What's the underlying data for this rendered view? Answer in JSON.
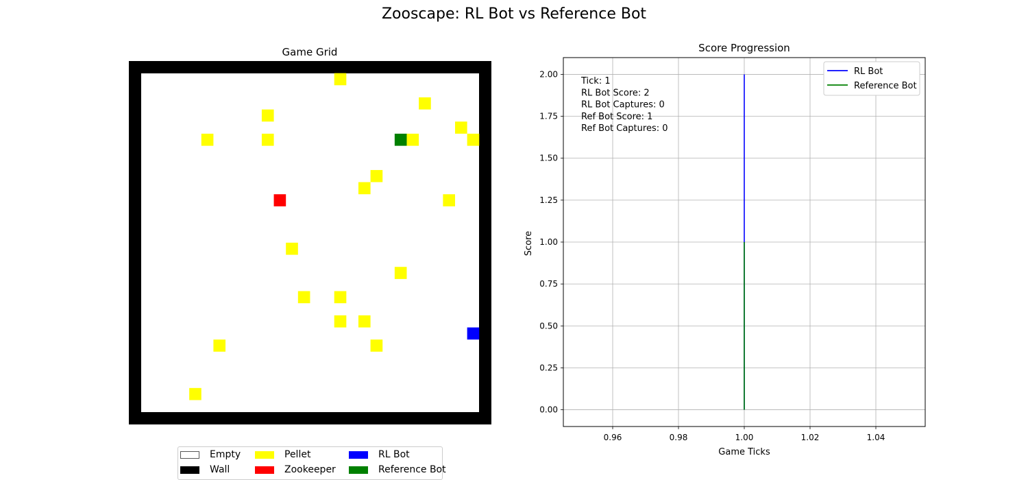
{
  "figure_title": "Zooscape: RL Bot vs Reference Bot",
  "grid_panel": {
    "title": "Game Grid",
    "cols": 30,
    "rows": 30,
    "colors": {
      "empty": "#ffffff",
      "wall": "#000000",
      "pellet": "#ffff00",
      "zookeeper": "#ff0000",
      "rl_bot": "#0000ff",
      "reference_bot": "#008000"
    },
    "pellets": [
      [
        17,
        1
      ],
      [
        24,
        3
      ],
      [
        11,
        4
      ],
      [
        27,
        5
      ],
      [
        6,
        6
      ],
      [
        11,
        6
      ],
      [
        23,
        6
      ],
      [
        28,
        6
      ],
      [
        20,
        9
      ],
      [
        19,
        10
      ],
      [
        26,
        11
      ],
      [
        13,
        15
      ],
      [
        22,
        17
      ],
      [
        14,
        19
      ],
      [
        17,
        19
      ],
      [
        17,
        21
      ],
      [
        19,
        21
      ],
      [
        7,
        23
      ],
      [
        20,
        23
      ],
      [
        5,
        27
      ]
    ],
    "zookeeper": [
      12,
      11
    ],
    "rl_bot": [
      28,
      22
    ],
    "reference_bot": [
      22,
      6
    ],
    "legend": [
      {
        "label": "Empty",
        "color": "#ffffff",
        "border": "#555555"
      },
      {
        "label": "Wall",
        "color": "#000000"
      },
      {
        "label": "Pellet",
        "color": "#ffff00"
      },
      {
        "label": "Zookeeper",
        "color": "#ff0000"
      },
      {
        "label": "RL Bot",
        "color": "#0000ff"
      },
      {
        "label": "Reference Bot",
        "color": "#008000"
      }
    ]
  },
  "chart_data": {
    "type": "line",
    "title": "Score Progression",
    "xlabel": "Game Ticks",
    "ylabel": "Score",
    "xlim": [
      0.945,
      1.055
    ],
    "ylim": [
      -0.1,
      2.1
    ],
    "xticks": [
      "0.96",
      "0.98",
      "1.00",
      "1.02",
      "1.04"
    ],
    "xtick_values": [
      0.96,
      0.98,
      1.0,
      1.02,
      1.04
    ],
    "yticks": [
      "0.00",
      "0.25",
      "0.50",
      "0.75",
      "1.00",
      "1.25",
      "1.50",
      "1.75",
      "2.00"
    ],
    "ytick_values": [
      0,
      0.25,
      0.5,
      0.75,
      1.0,
      1.25,
      1.5,
      1.75,
      2.0
    ],
    "grid": true,
    "legend_position": "top-right",
    "series": [
      {
        "name": "RL Bot",
        "color": "#0000ff",
        "points": [
          [
            1,
            0
          ],
          [
            1,
            2
          ]
        ]
      },
      {
        "name": "Reference Bot",
        "color": "#008000",
        "points": [
          [
            1,
            0
          ],
          [
            1,
            1
          ]
        ]
      }
    ],
    "annotation": [
      "Tick: 1",
      "RL Bot Score: 2",
      "RL Bot Captures: 0",
      "Ref Bot Score: 1",
      "Ref Bot Captures: 0"
    ]
  }
}
